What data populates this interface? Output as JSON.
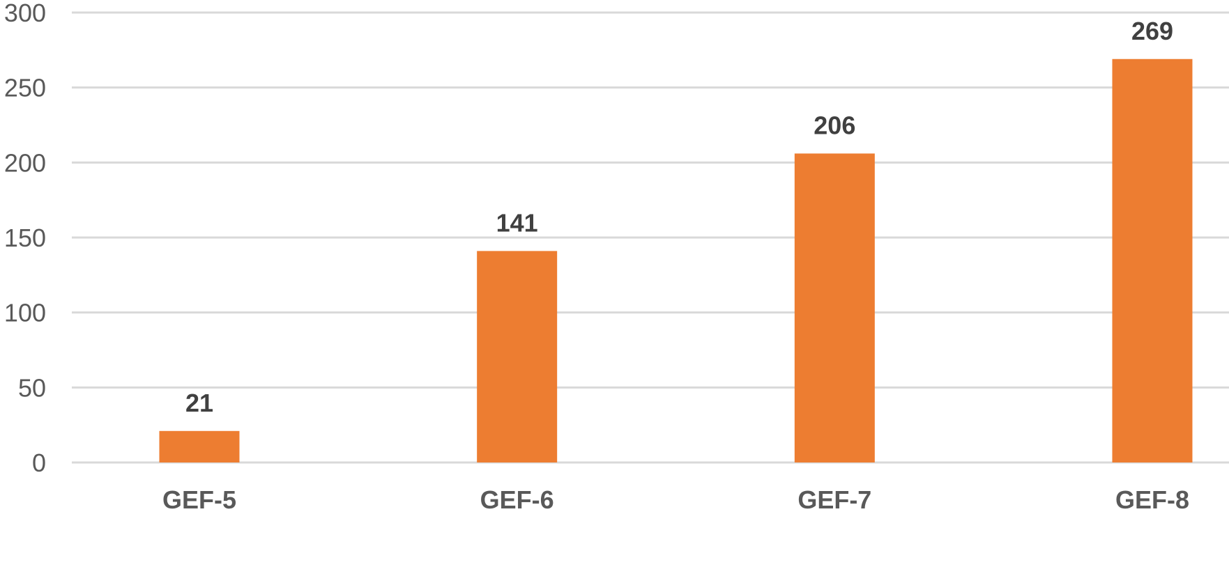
{
  "chart_data": {
    "type": "bar",
    "categories": [
      "GEF-5",
      "GEF-6",
      "GEF-7",
      "GEF-8"
    ],
    "values": [
      21,
      141,
      206,
      269
    ],
    "data_labels": [
      "21",
      "141",
      "206",
      "269"
    ],
    "title": "",
    "xlabel": "",
    "ylabel": "",
    "ylim": [
      0,
      300
    ],
    "yticks": [
      0,
      50,
      100,
      150,
      200,
      250,
      300
    ],
    "ytick_labels": [
      "0",
      "50",
      "100",
      "150",
      "200",
      "250",
      "300"
    ],
    "grid": true,
    "legend": "none",
    "bar_color": "#ed7d31"
  }
}
